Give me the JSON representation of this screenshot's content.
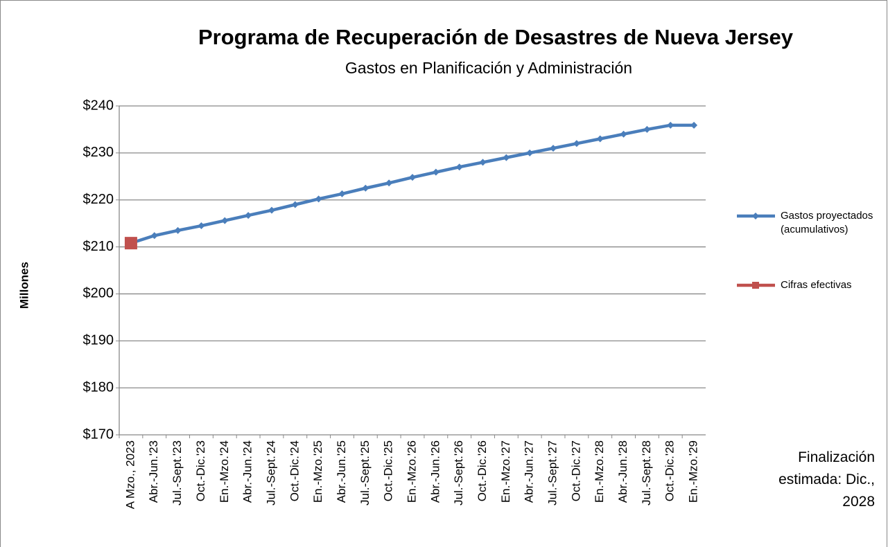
{
  "chart_data": {
    "type": "line",
    "title": "Programa de Recuperación de Desastres de Nueva Jersey",
    "subtitle": "Gastos en Planificación y Administración",
    "y_label": "Millones",
    "categories": [
      "A Mzo., 2023",
      "Abr.-Jun.'23",
      "Jul.-Sept.'23",
      "Oct.-Dic.'23",
      "En.-Mzo.'24",
      "Abr.-Jun.'24",
      "Jul.-Sept.'24",
      "Oct.-Dic.'24",
      "En.-Mzo.'25",
      "Abr.-Jun.'25",
      "Jul.-Sept.'25",
      "Oct.-Dic.'25",
      "En.-Mzo.'26",
      "Abr.-Jun.'26",
      "Jul.-Sept.'26",
      "Oct.-Dic.'26",
      "En.-Mzo.'27",
      "Abr.-Jun.'27",
      "Jul.-Sept.'27",
      "Oct.-Dic.'27",
      "En.-Mzo.'28",
      "Abr.-Jun.'28",
      "Jul.-Sept.'28",
      "Oct.-Dic.'28",
      "En.-Mzo.'29"
    ],
    "series": [
      {
        "name": "Gastos proyectados (acumulativos)",
        "color": "#4a7ebb",
        "marker": "diamond",
        "values": [
          210.8,
          212.4,
          213.5,
          214.5,
          215.6,
          216.7,
          217.8,
          219.0,
          220.2,
          221.3,
          222.5,
          223.6,
          224.8,
          225.9,
          227.0,
          228.0,
          229.0,
          230.0,
          231.0,
          232.0,
          233.0,
          234.0,
          235.0,
          235.9,
          235.9
        ]
      },
      {
        "name": "Cifras efectivas",
        "color": "#c0504d",
        "marker": "square",
        "values": [
          210.8,
          null,
          null,
          null,
          null,
          null,
          null,
          null,
          null,
          null,
          null,
          null,
          null,
          null,
          null,
          null,
          null,
          null,
          null,
          null,
          null,
          null,
          null,
          null,
          null
        ]
      }
    ],
    "ylim": [
      170,
      240
    ],
    "yticks": [
      {
        "value": 170,
        "label": "$170"
      },
      {
        "value": 180,
        "label": "$180"
      },
      {
        "value": 190,
        "label": "$190"
      },
      {
        "value": 200,
        "label": "$200"
      },
      {
        "value": 210,
        "label": "$210"
      },
      {
        "value": 220,
        "label": "$220"
      },
      {
        "value": 230,
        "label": "$230"
      },
      {
        "value": 240,
        "label": "$240"
      }
    ],
    "grid": true,
    "legend": "right",
    "annotation": "Finalización estimada: Dic., 2028"
  }
}
